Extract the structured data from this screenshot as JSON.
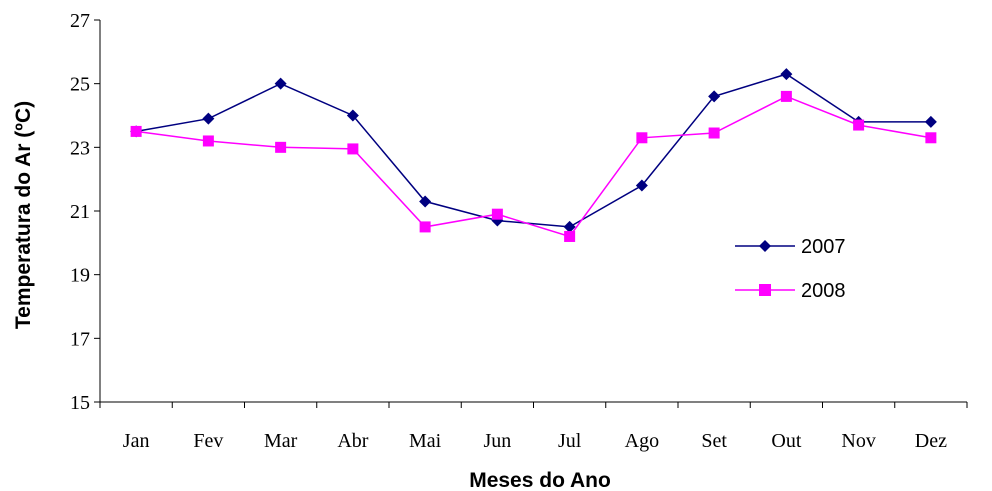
{
  "chart_data": {
    "type": "line",
    "title": "",
    "xlabel": "Meses do Ano",
    "ylabel": "Temperatura do Ar (ºC)",
    "categories": [
      "Jan",
      "Fev",
      "Mar",
      "Abr",
      "Mai",
      "Jun",
      "Jul",
      "Ago",
      "Set",
      "Out",
      "Nov",
      "Dez"
    ],
    "ylim": [
      15,
      27
    ],
    "yticks": [
      15,
      17,
      19,
      21,
      23,
      25,
      27
    ],
    "grid": false,
    "legend_position": "right",
    "series": [
      {
        "name": "2007",
        "color": "#000080",
        "marker": "diamond",
        "values": [
          23.5,
          23.9,
          25.0,
          24.0,
          21.3,
          20.7,
          20.5,
          21.8,
          24.6,
          25.3,
          23.8,
          23.8
        ]
      },
      {
        "name": "2008",
        "color": "#FF00FF",
        "marker": "square",
        "values": [
          23.5,
          23.2,
          23.0,
          22.95,
          20.5,
          20.9,
          20.2,
          23.3,
          23.45,
          24.6,
          23.7,
          23.3
        ]
      }
    ]
  }
}
